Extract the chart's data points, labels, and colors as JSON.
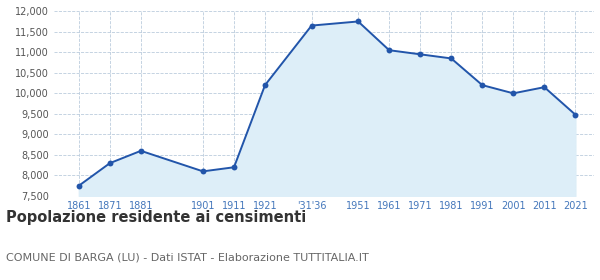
{
  "years": [
    1861,
    1871,
    1881,
    1901,
    1911,
    1921,
    1936,
    1951,
    1961,
    1971,
    1981,
    1991,
    2001,
    2011,
    2021
  ],
  "x_tick_labels": [
    "1861",
    "1871",
    "1881",
    "1901",
    "1911",
    "1921",
    "'31'36",
    "1951",
    "1961",
    "1971",
    "1981",
    "1991",
    "2001",
    "2011",
    "2021"
  ],
  "population": [
    7750,
    8300,
    8600,
    8100,
    8200,
    10200,
    11650,
    11750,
    11050,
    10950,
    10850,
    10200,
    10000,
    10150,
    9480
  ],
  "ylim": [
    7500,
    12000
  ],
  "yticks": [
    7500,
    8000,
    8500,
    9000,
    9500,
    10000,
    10500,
    11000,
    11500,
    12000
  ],
  "line_color": "#2255aa",
  "fill_color": "#ddeef8",
  "marker_color": "#2255aa",
  "plot_bg_color": "#ffffff",
  "fig_bg_color": "#ffffff",
  "grid_color": "#bbccdd",
  "title": "Popolazione residente ai censimenti",
  "subtitle": "COMUNE DI BARGA (LU) - Dati ISTAT - Elaborazione TUTTITALIA.IT",
  "title_fontsize": 10.5,
  "subtitle_fontsize": 8,
  "ytick_label_color": "#555555",
  "xtick_label_color": "#4477bb",
  "tick_label_size": 7,
  "xlim_left": 1853,
  "xlim_right": 2027
}
